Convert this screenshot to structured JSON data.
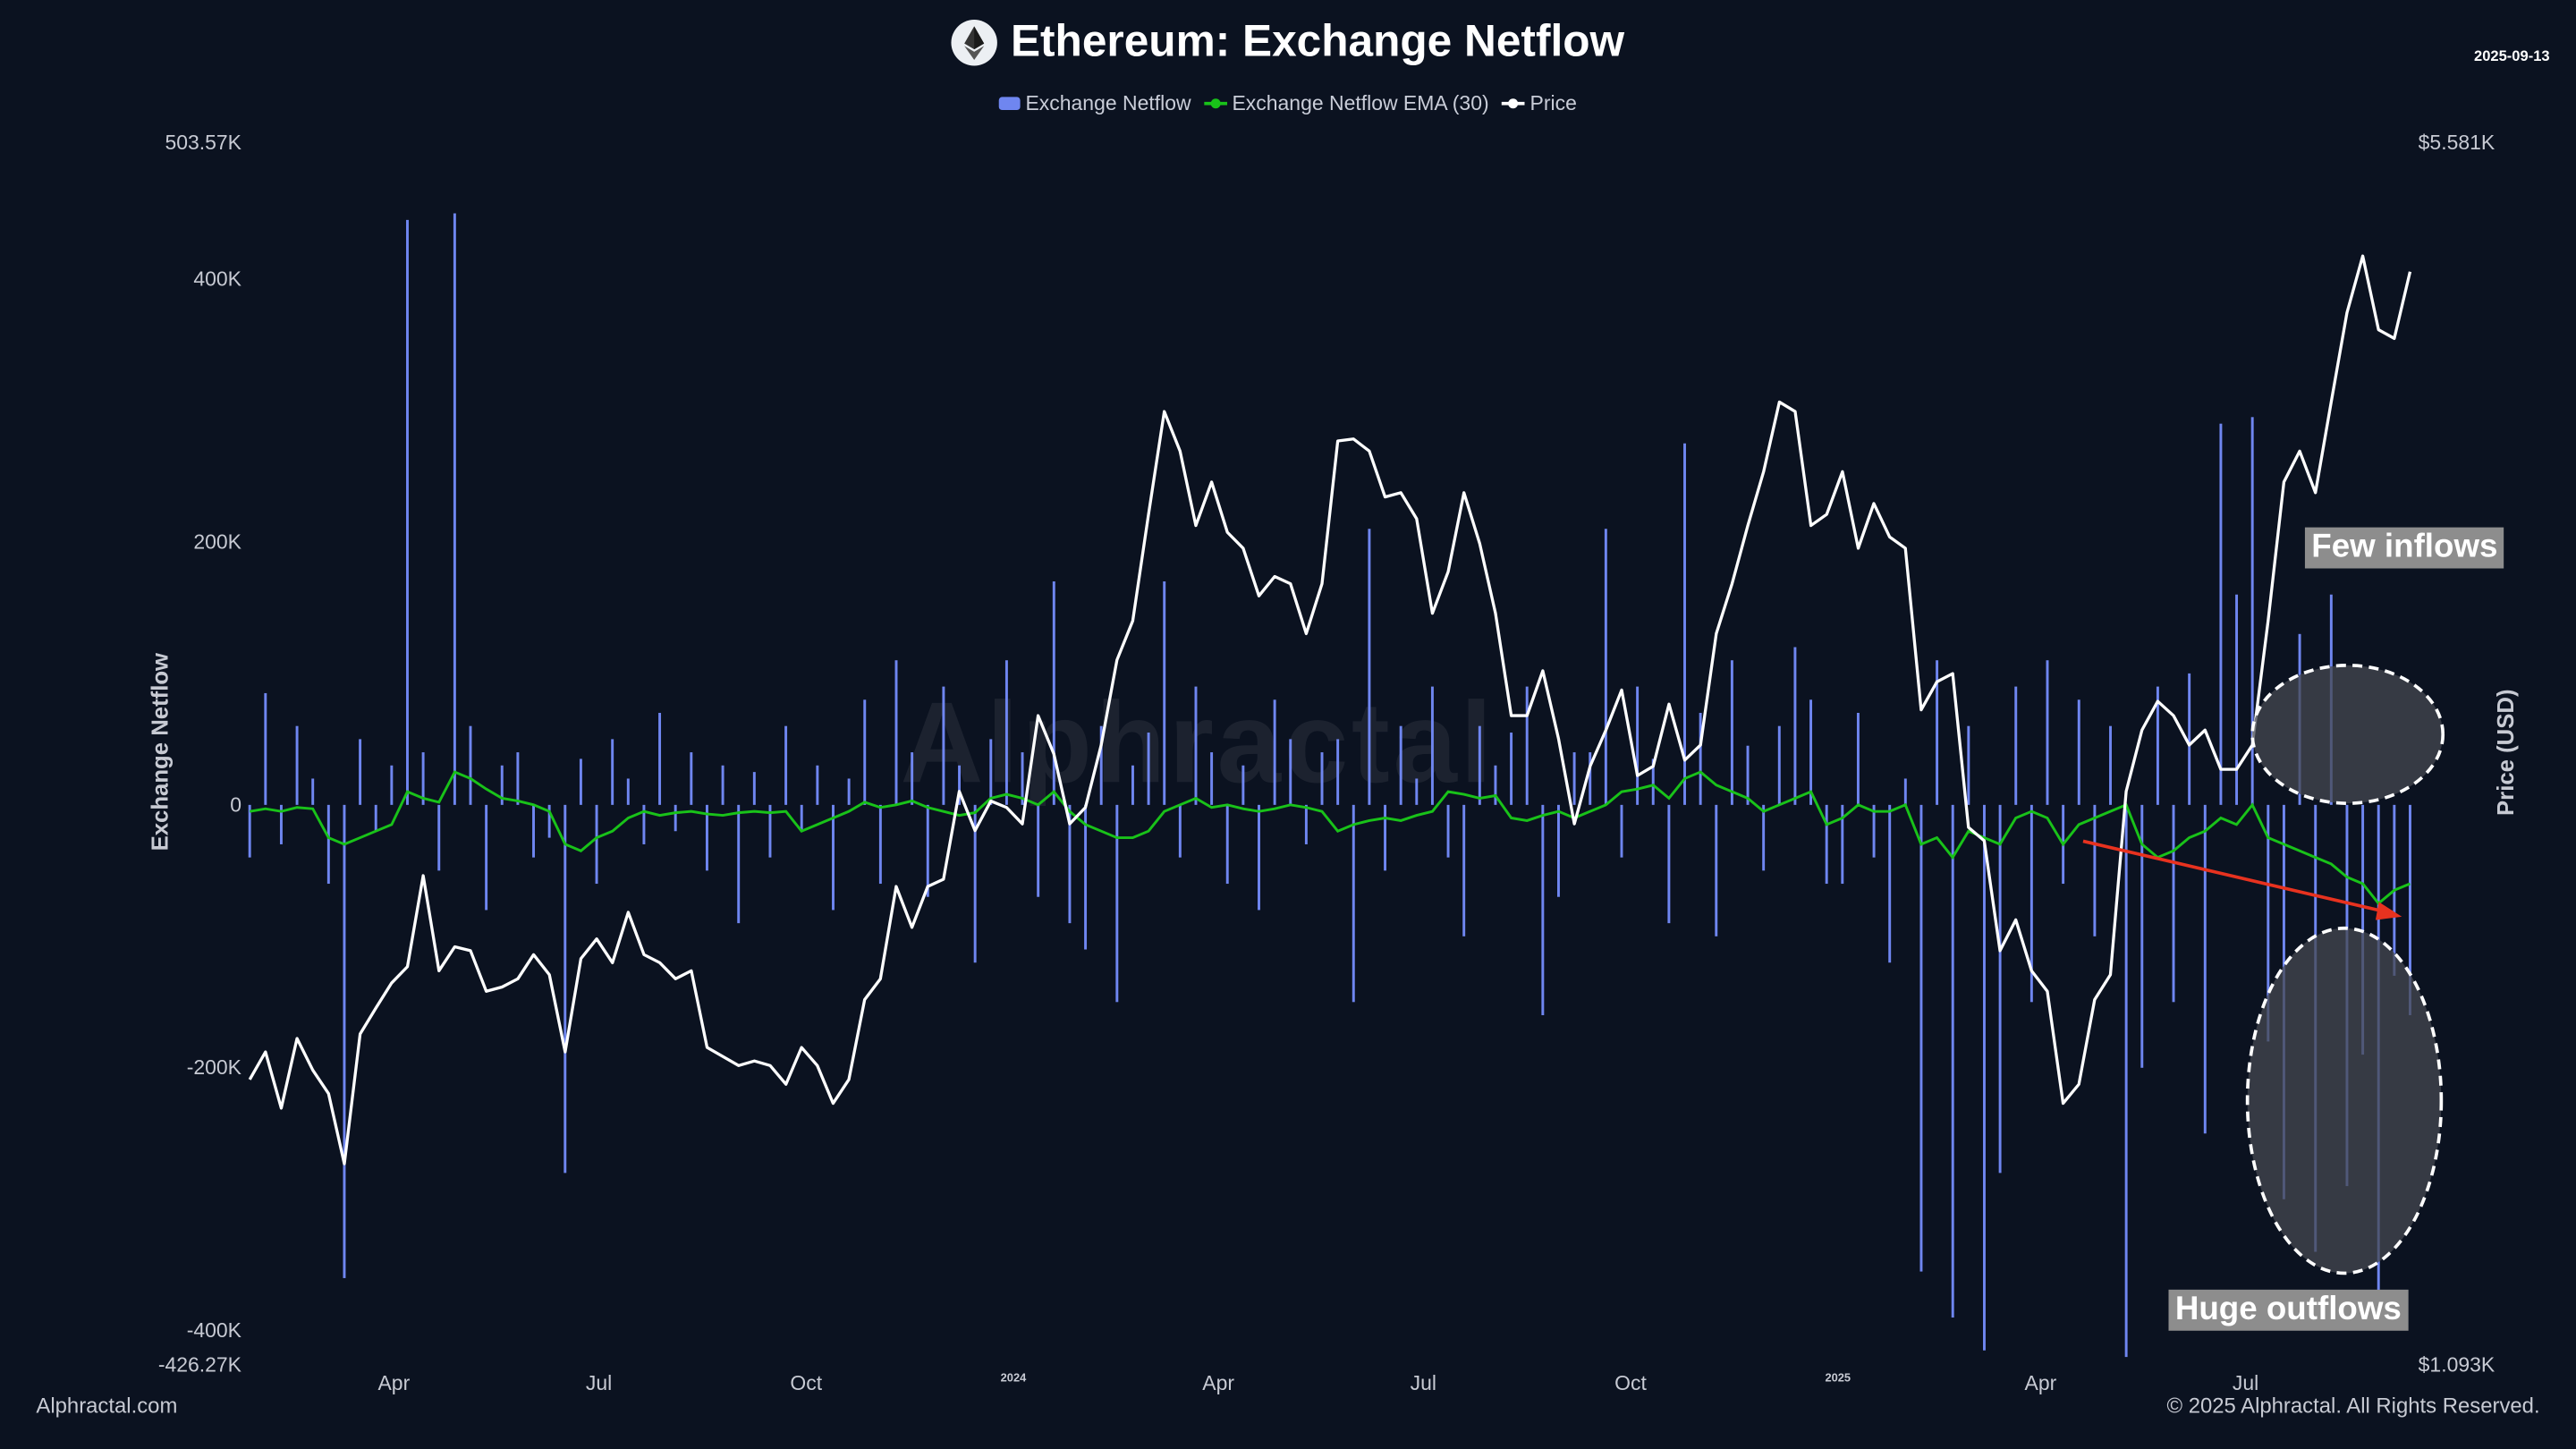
{
  "header": {
    "title": "Ethereum: Exchange Netflow",
    "logo_icon": "ethereum-icon",
    "date": "2025-09-13"
  },
  "legend": [
    {
      "label": "Exchange Netflow",
      "color": "#6f86f0",
      "marker": "bar"
    },
    {
      "label": "Exchange Netflow EMA (30)",
      "color": "#19c219",
      "marker": "line"
    },
    {
      "label": "Price",
      "color": "#ffffff",
      "marker": "line"
    }
  ],
  "footer": {
    "left": "Alphractal.com",
    "right": "© 2025 Alphractal. All Rights Reserved."
  },
  "watermark": "Alphractal",
  "annotations": {
    "few_inflows": "Few inflows",
    "huge_outflows": "Huge outflows",
    "arrow_color": "#e8321f"
  },
  "chart_data": {
    "type": "bar+line",
    "title": "Ethereum: Exchange Netflow",
    "ylabel_left": "Exchange Netflow",
    "ylabel_right": "Price (USD)",
    "left_axis": {
      "range": [
        -426270,
        503570
      ],
      "range_labels": [
        "503.57K",
        "-426.27K"
      ],
      "ticks": [
        {
          "v": 400000,
          "label": "400K"
        },
        {
          "v": 200000,
          "label": "200K"
        },
        {
          "v": 0,
          "label": "0"
        },
        {
          "v": -200000,
          "label": "-200K"
        },
        {
          "v": -400000,
          "label": "-400K"
        }
      ]
    },
    "right_axis": {
      "scale": "log",
      "range": [
        1093,
        5581
      ],
      "range_labels": [
        "$5.581K",
        "$1.093K"
      ]
    },
    "x_ticks": [
      {
        "label": "Apr",
        "date": "2023-04-01"
      },
      {
        "label": "Jul",
        "date": "2023-07-01"
      },
      {
        "label": "Oct",
        "date": "2023-10-01"
      },
      {
        "label": "2024",
        "date": "2024-01-01",
        "year": true
      },
      {
        "label": "Apr",
        "date": "2024-04-01"
      },
      {
        "label": "Jul",
        "date": "2024-07-01"
      },
      {
        "label": "Oct",
        "date": "2024-10-01"
      },
      {
        "label": "2025",
        "date": "2025-01-01",
        "year": true
      },
      {
        "label": "Apr",
        "date": "2025-04-01"
      },
      {
        "label": "Jul",
        "date": "2025-07-01"
      }
    ],
    "grid": false,
    "legend_position": "top",
    "dates": [
      "2023-01-27",
      "2023-02-03",
      "2023-02-10",
      "2023-02-17",
      "2023-02-24",
      "2023-03-03",
      "2023-03-10",
      "2023-03-17",
      "2023-03-24",
      "2023-03-31",
      "2023-04-07",
      "2023-04-14",
      "2023-04-21",
      "2023-04-28",
      "2023-05-05",
      "2023-05-12",
      "2023-05-19",
      "2023-05-26",
      "2023-06-02",
      "2023-06-09",
      "2023-06-16",
      "2023-06-23",
      "2023-06-30",
      "2023-07-07",
      "2023-07-14",
      "2023-07-21",
      "2023-07-28",
      "2023-08-04",
      "2023-08-11",
      "2023-08-18",
      "2023-08-25",
      "2023-09-01",
      "2023-09-08",
      "2023-09-15",
      "2023-09-22",
      "2023-09-29",
      "2023-10-06",
      "2023-10-13",
      "2023-10-20",
      "2023-10-27",
      "2023-11-03",
      "2023-11-10",
      "2023-11-17",
      "2023-11-24",
      "2023-12-01",
      "2023-12-08",
      "2023-12-15",
      "2023-12-22",
      "2023-12-29",
      "2024-01-05",
      "2024-01-12",
      "2024-01-19",
      "2024-01-26",
      "2024-02-02",
      "2024-02-09",
      "2024-02-16",
      "2024-02-23",
      "2024-03-01",
      "2024-03-08",
      "2024-03-15",
      "2024-03-22",
      "2024-03-29",
      "2024-04-05",
      "2024-04-12",
      "2024-04-19",
      "2024-04-26",
      "2024-05-03",
      "2024-05-10",
      "2024-05-17",
      "2024-05-24",
      "2024-05-31",
      "2024-06-07",
      "2024-06-14",
      "2024-06-21",
      "2024-06-28",
      "2024-07-05",
      "2024-07-12",
      "2024-07-19",
      "2024-07-26",
      "2024-08-02",
      "2024-08-09",
      "2024-08-16",
      "2024-08-23",
      "2024-08-30",
      "2024-09-06",
      "2024-09-13",
      "2024-09-20",
      "2024-09-27",
      "2024-10-04",
      "2024-10-11",
      "2024-10-18",
      "2024-10-25",
      "2024-11-01",
      "2024-11-08",
      "2024-11-15",
      "2024-11-22",
      "2024-11-29",
      "2024-12-06",
      "2024-12-13",
      "2024-12-20",
      "2024-12-27",
      "2025-01-03",
      "2025-01-10",
      "2025-01-17",
      "2025-01-24",
      "2025-01-31",
      "2025-02-07",
      "2025-02-14",
      "2025-02-21",
      "2025-02-28",
      "2025-03-07",
      "2025-03-14",
      "2025-03-21",
      "2025-03-28",
      "2025-04-04",
      "2025-04-11",
      "2025-04-18",
      "2025-04-25",
      "2025-05-02",
      "2025-05-09",
      "2025-05-16",
      "2025-05-23",
      "2025-05-30",
      "2025-06-06",
      "2025-06-13",
      "2025-06-20",
      "2025-06-27",
      "2025-07-04",
      "2025-07-11",
      "2025-07-18",
      "2025-07-25",
      "2025-08-01",
      "2025-08-08",
      "2025-08-15",
      "2025-08-22",
      "2025-08-29",
      "2025-09-05",
      "2025-09-12"
    ],
    "series": [
      {
        "name": "Exchange Netflow",
        "type": "bar",
        "axis": "left",
        "unit": "K",
        "color": "#6f86f0",
        "values": [
          -40,
          85,
          -30,
          60,
          20,
          -60,
          -360,
          50,
          -20,
          30,
          445,
          40,
          -50,
          450,
          60,
          -80,
          30,
          40,
          -40,
          -25,
          -280,
          35,
          -60,
          50,
          20,
          -30,
          70,
          -20,
          40,
          -50,
          30,
          -90,
          25,
          -40,
          60,
          -20,
          30,
          -80,
          20,
          80,
          -60,
          110,
          40,
          -70,
          90,
          30,
          -120,
          50,
          110,
          40,
          -70,
          170,
          -90,
          -110,
          60,
          -150,
          30,
          55,
          170,
          -40,
          90,
          40,
          -60,
          30,
          -80,
          80,
          50,
          -30,
          40,
          50,
          -150,
          210,
          -50,
          60,
          20,
          90,
          -40,
          -100,
          60,
          30,
          55,
          90,
          -160,
          -70,
          40,
          40,
          210,
          -40,
          90,
          35,
          -90,
          275,
          70,
          -100,
          110,
          45,
          -50,
          60,
          120,
          80,
          -60,
          -60,
          70,
          -40,
          -120,
          20,
          -355,
          110,
          -390,
          60,
          -415,
          -280,
          90,
          -150,
          110,
          -60,
          80,
          -100,
          60,
          -420,
          -200,
          90,
          -150,
          100,
          -250,
          290,
          160,
          295,
          -180,
          -300,
          130,
          -340,
          160,
          -290,
          -190,
          -370,
          -130,
          -160
        ]
      },
      {
        "name": "Exchange Netflow EMA (30)",
        "type": "line",
        "axis": "left",
        "unit": "K",
        "color": "#19c219",
        "values": [
          -5,
          -3,
          -5,
          -2,
          -3,
          -25,
          -30,
          -25,
          -20,
          -15,
          10,
          5,
          2,
          25,
          20,
          12,
          5,
          3,
          0,
          -5,
          -30,
          -35,
          -25,
          -20,
          -10,
          -5,
          -8,
          -6,
          -5,
          -7,
          -8,
          -6,
          -5,
          -6,
          -5,
          -20,
          -15,
          -10,
          -5,
          2,
          -2,
          0,
          3,
          -2,
          -5,
          -8,
          -6,
          5,
          8,
          5,
          0,
          10,
          -5,
          -15,
          -20,
          -25,
          -25,
          -20,
          -5,
          0,
          5,
          -2,
          0,
          -3,
          -5,
          -3,
          0,
          -2,
          -5,
          -20,
          -15,
          -12,
          -10,
          -12,
          -8,
          -5,
          10,
          8,
          5,
          7,
          -10,
          -12,
          -8,
          -5,
          -10,
          -5,
          0,
          10,
          12,
          15,
          5,
          20,
          25,
          15,
          10,
          5,
          -5,
          0,
          5,
          10,
          -15,
          -10,
          0,
          -5,
          -5,
          0,
          -30,
          -25,
          -40,
          -20,
          -25,
          -30,
          -10,
          -5,
          -10,
          -30,
          -15,
          -10,
          -5,
          0,
          -30,
          -40,
          -35,
          -25,
          -20,
          -10,
          -15,
          0,
          -25,
          -30,
          -35,
          -40,
          -45,
          -55,
          -60,
          -75,
          -65,
          -60
        ]
      },
      {
        "name": "Price",
        "type": "line",
        "axis": "right",
        "unit": "USD",
        "color": "#ffffff",
        "values": [
          1600,
          1660,
          1540,
          1690,
          1620,
          1570,
          1430,
          1700,
          1760,
          1820,
          1860,
          2100,
          1850,
          1910,
          1900,
          1800,
          1810,
          1830,
          1890,
          1840,
          1660,
          1880,
          1930,
          1870,
          2000,
          1890,
          1870,
          1830,
          1850,
          1670,
          1650,
          1630,
          1640,
          1630,
          1590,
          1670,
          1630,
          1550,
          1600,
          1780,
          1830,
          2070,
          1960,
          2070,
          2090,
          2350,
          2230,
          2320,
          2300,
          2250,
          2600,
          2470,
          2250,
          2300,
          2500,
          2800,
          2950,
          3400,
          3900,
          3700,
          3350,
          3550,
          3320,
          3250,
          3050,
          3130,
          3100,
          2900,
          3100,
          3750,
          3760,
          3700,
          3480,
          3500,
          3380,
          2980,
          3150,
          3500,
          3270,
          2980,
          2600,
          2600,
          2760,
          2520,
          2250,
          2430,
          2550,
          2690,
          2400,
          2430,
          2640,
          2450,
          2500,
          2900,
          3100,
          3350,
          3600,
          3950,
          3900,
          3350,
          3400,
          3600,
          3250,
          3450,
          3300,
          3250,
          2620,
          2720,
          2750,
          2240,
          2200,
          1900,
          1980,
          1850,
          1800,
          1550,
          1590,
          1780,
          1840,
          2350,
          2550,
          2650,
          2600,
          2500,
          2550,
          2420,
          2420,
          2500,
          2950,
          3550,
          3700,
          3500,
          3950,
          4450,
          4800,
          4350,
          4300,
          4700
        ]
      }
    ]
  }
}
